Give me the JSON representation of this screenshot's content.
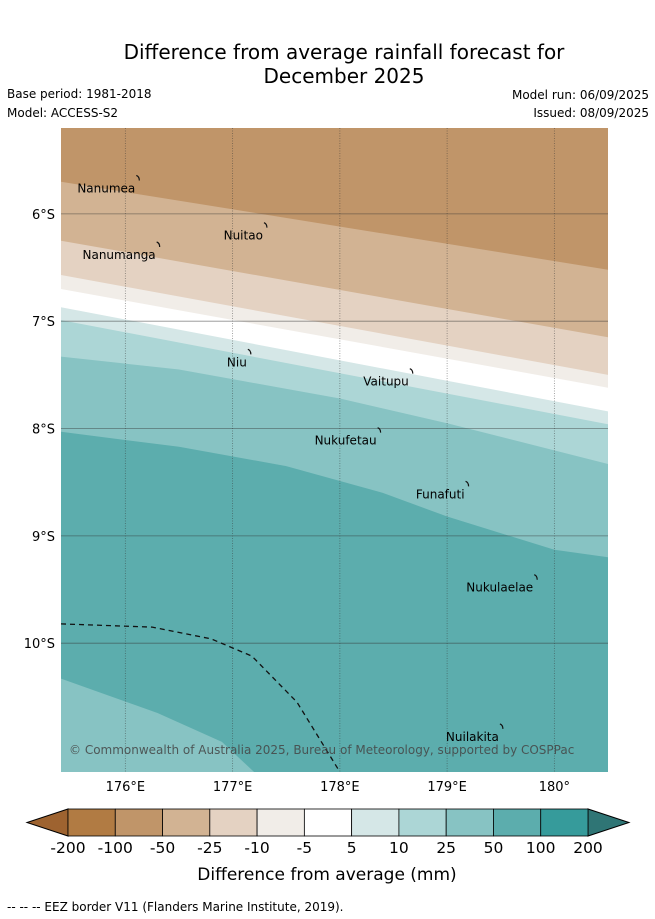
{
  "title": {
    "line1": "Difference from average rainfall forecast for",
    "line2": "December 2025"
  },
  "meta": {
    "base_period": "Base period: 1981-2018",
    "model": "Model: ACCESS-S2",
    "model_run": "Model run: 06/09/2025",
    "issued": "Issued: 08/09/2025"
  },
  "map": {
    "lon_range": [
      175.4,
      180.5
    ],
    "lat_range": [
      -11.2,
      -5.2
    ],
    "x_ticks": [
      {
        "value": 176,
        "label": "176°E"
      },
      {
        "value": 177,
        "label": "177°E"
      },
      {
        "value": 178,
        "label": "178°E"
      },
      {
        "value": 179,
        "label": "179°E"
      },
      {
        "value": 180,
        "label": "180°"
      }
    ],
    "y_ticks": [
      {
        "value": -6,
        "label": "6°S"
      },
      {
        "value": -7,
        "label": "7°S"
      },
      {
        "value": -8,
        "label": "8°S"
      },
      {
        "value": -9,
        "label": "9°S"
      },
      {
        "value": -10,
        "label": "10°S"
      }
    ],
    "islands": [
      {
        "name": "Nanumea",
        "lon": 176.13,
        "lat": -5.67
      },
      {
        "name": "Nuitao",
        "lon": 177.32,
        "lat": -6.11
      },
      {
        "name": "Nanumanga",
        "lon": 176.32,
        "lat": -6.29
      },
      {
        "name": "Niu",
        "lon": 177.17,
        "lat": -7.29
      },
      {
        "name": "Vaitupu",
        "lon": 178.68,
        "lat": -7.47
      },
      {
        "name": "Nukufetau",
        "lon": 178.38,
        "lat": -8.02
      },
      {
        "name": "Funafuti",
        "lon": 179.2,
        "lat": -8.52
      },
      {
        "name": "Nukulaelae",
        "lon": 179.84,
        "lat": -9.39
      },
      {
        "name": "Nuilakita",
        "lon": 179.52,
        "lat": -10.78
      }
    ],
    "eez_border": [
      [
        175.4,
        -9.82
      ],
      [
        176.25,
        -9.85
      ],
      [
        176.8,
        -9.96
      ],
      [
        177.18,
        -10.12
      ],
      [
        177.6,
        -10.55
      ],
      [
        178.0,
        -11.2
      ]
    ],
    "bands": [
      {
        "color": "#c09569",
        "top": [
          [
            175.4,
            -5.2
          ],
          [
            180.5,
            -5.2
          ]
        ]
      },
      {
        "color": "#d2b393",
        "top": [
          [
            175.4,
            -5.7
          ],
          [
            180.5,
            -6.52
          ]
        ]
      },
      {
        "color": "#e4d2c2",
        "top": [
          [
            175.4,
            -6.25
          ],
          [
            180.5,
            -7.15
          ]
        ]
      },
      {
        "color": "#f1ede8",
        "top": [
          [
            175.4,
            -6.57
          ],
          [
            180.5,
            -7.5
          ]
        ]
      },
      {
        "color": "#ffffff",
        "top": [
          [
            175.4,
            -6.7
          ],
          [
            180.5,
            -7.62
          ]
        ]
      },
      {
        "color": "#d5e7e7",
        "top": [
          [
            175.4,
            -6.87
          ],
          [
            180.5,
            -7.84
          ]
        ]
      },
      {
        "color": "#acd6d6",
        "top": [
          [
            175.4,
            -6.99
          ],
          [
            180.5,
            -7.96
          ]
        ]
      },
      {
        "color": "#87c3c3",
        "top": [
          [
            175.4,
            -7.33
          ],
          [
            176.5,
            -7.45
          ],
          [
            178.0,
            -7.72
          ],
          [
            179.0,
            -7.95
          ],
          [
            180.5,
            -8.33
          ]
        ]
      },
      {
        "color": "#5cadad",
        "top": [
          [
            175.4,
            -8.03
          ],
          [
            176.5,
            -8.17
          ],
          [
            177.5,
            -8.35
          ],
          [
            178.4,
            -8.6
          ],
          [
            179.0,
            -8.82
          ],
          [
            180.0,
            -9.13
          ],
          [
            180.5,
            -9.2
          ]
        ]
      },
      {
        "color": "#87c3c3",
        "top": [
          [
            175.4,
            -10.33
          ],
          [
            176.3,
            -10.65
          ],
          [
            176.9,
            -10.92
          ],
          [
            177.2,
            -11.2
          ]
        ]
      }
    ],
    "copyright": "© Commonwealth of Australia 2025, Bureau of Meteorology, supported by COSPPac"
  },
  "legend": {
    "title": "Difference from average (mm)",
    "labels": [
      "-200",
      "-100",
      "-50",
      "-25",
      "-10",
      "-5",
      "5",
      "10",
      "25",
      "50",
      "100",
      "200"
    ],
    "colors": [
      "#b17b43",
      "#c09569",
      "#d2b393",
      "#e4d2c2",
      "#f1ede8",
      "#ffffff",
      "#d5e7e7",
      "#acd6d6",
      "#87c3c3",
      "#5cadad",
      "#369b9b"
    ],
    "under_color": "#9e6330",
    "over_color": "#2f7575"
  },
  "footer": "-- -- -- EEZ border V11 (Flanders Marine Institute, 2019)."
}
